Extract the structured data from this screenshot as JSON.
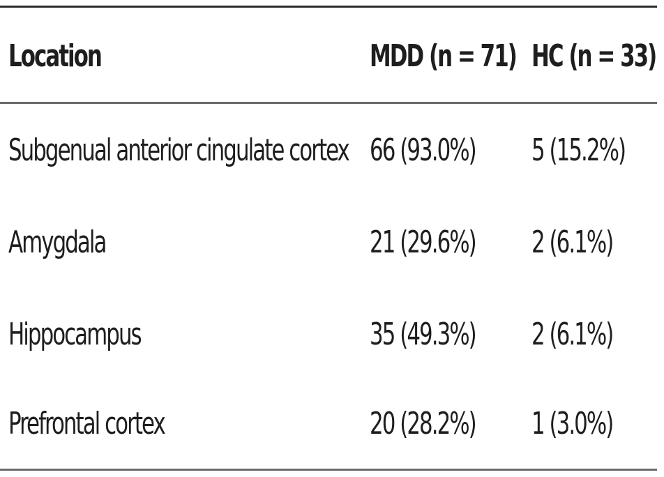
{
  "table": {
    "headers": {
      "location": "Location",
      "mdd": "MDD (n = 71)",
      "hc": "HC (n = 33)"
    },
    "rows": [
      {
        "location": "Subgenual anterior cingulate cortex",
        "mdd": "66 (93.0%)",
        "hc": "5 (15.2%)"
      },
      {
        "location": "Amygdala",
        "mdd": "21 (29.6%)",
        "hc": "2 (6.1%)"
      },
      {
        "location": "Hippocampus",
        "mdd": "35 (49.3%)",
        "hc": "2 (6.1%)"
      },
      {
        "location": "Prefrontal cortex",
        "mdd": "20 (28.2%)",
        "hc": "1 (3.0%)"
      }
    ]
  }
}
